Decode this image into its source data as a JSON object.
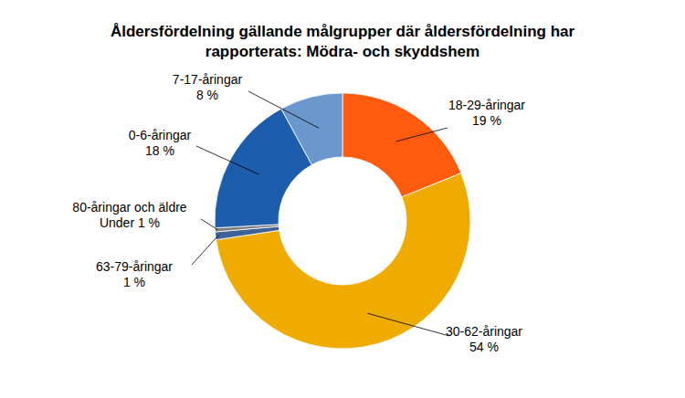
{
  "chart_data": {
    "type": "donut",
    "title": "Åldersfördelning gällande målgrupper där åldersfördelning har rapporterats: Mödra- och skyddshem",
    "categories": [
      "18-29-åringar",
      "30-62-åringar",
      "63-79-åringar",
      "80-åringar och äldre",
      "0-6-åringar",
      "7-17-åringar"
    ],
    "values": [
      19,
      54,
      1,
      0.5,
      18,
      8
    ],
    "value_labels": [
      "19 %",
      "54 %",
      "1 %",
      "Under 1 %",
      "18 %",
      "8 %"
    ],
    "colors": [
      "#ff5b0f",
      "#f0ab00",
      "#3f6395",
      "#808080",
      "#1c5eab",
      "#6a98cc"
    ],
    "data_labels": true
  }
}
